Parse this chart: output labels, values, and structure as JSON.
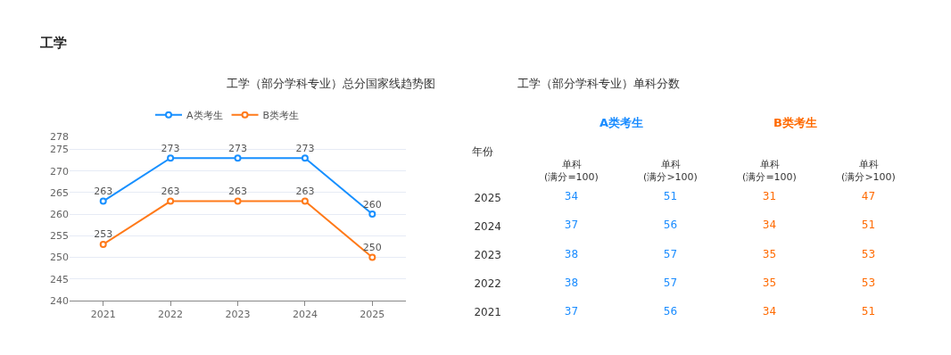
{
  "chart_data": [
    {
      "type": "line",
      "title": "工学（部分学科专业）总分国家线趋势图",
      "annotations": [
        "工学"
      ],
      "categories": [
        "2021",
        "2022",
        "2023",
        "2024",
        "2025"
      ],
      "series": [
        {
          "name": "A类考生",
          "color": "#1890ff",
          "values": [
            263,
            273,
            273,
            273,
            260
          ]
        },
        {
          "name": "B类考生",
          "color": "#ff7a1a",
          "values": [
            253,
            263,
            263,
            263,
            250
          ]
        }
      ],
      "ylim": [
        240,
        278
      ],
      "yticks": [
        240,
        245,
        250,
        255,
        260,
        265,
        270,
        275,
        278
      ],
      "grid": "y",
      "legend": "top",
      "marker": "circle",
      "line_style": "solid",
      "data_labels": true
    },
    {
      "type": "heatmap",
      "title": "工学（部分学科专业）单科分数",
      "ylabel": "年份",
      "annotations": [
        "A类考生",
        "B类考生"
      ],
      "categories": [
        "单科\n(满分=100)",
        "单科\n(满分>100)",
        "单科\n(满分=100)",
        "单科\n(满分>100)"
      ],
      "y_categories": [
        "2025",
        "2024",
        "2023",
        "2022",
        "2021"
      ],
      "colors": [
        "#1a8cff",
        "#1a8cff",
        "#ff6a00",
        "#ff6a00"
      ],
      "cells": [
        [
          34,
          51,
          31,
          47
        ],
        [
          37,
          56,
          34,
          51
        ],
        [
          38,
          57,
          35,
          53
        ],
        [
          38,
          57,
          35,
          53
        ],
        [
          37,
          56,
          34,
          51
        ]
      ],
      "data_labels": true
    }
  ]
}
